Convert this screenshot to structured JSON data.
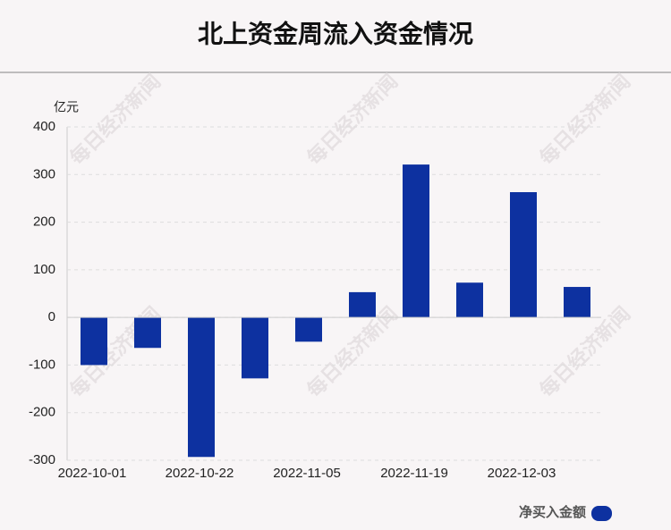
{
  "chart_data": {
    "type": "bar",
    "title": "北上资金周流入资金情况",
    "y_label": "亿元",
    "watermark": "每日经济新闻",
    "categories": [
      "2022-10-01",
      null,
      "2022-10-22",
      null,
      "2022-11-05",
      null,
      "2022-11-19",
      null,
      "2022-12-03",
      null
    ],
    "series": [
      {
        "name": "净买入金额",
        "color": "#0d31a0",
        "values": [
          -100,
          -64,
          -293,
          -128,
          -51,
          53,
          321,
          73,
          263,
          64
        ]
      }
    ],
    "ylim": [
      -300,
      400
    ],
    "yticks": [
      -300,
      -200,
      -100,
      0,
      100,
      200,
      300,
      400
    ],
    "grid": true
  }
}
